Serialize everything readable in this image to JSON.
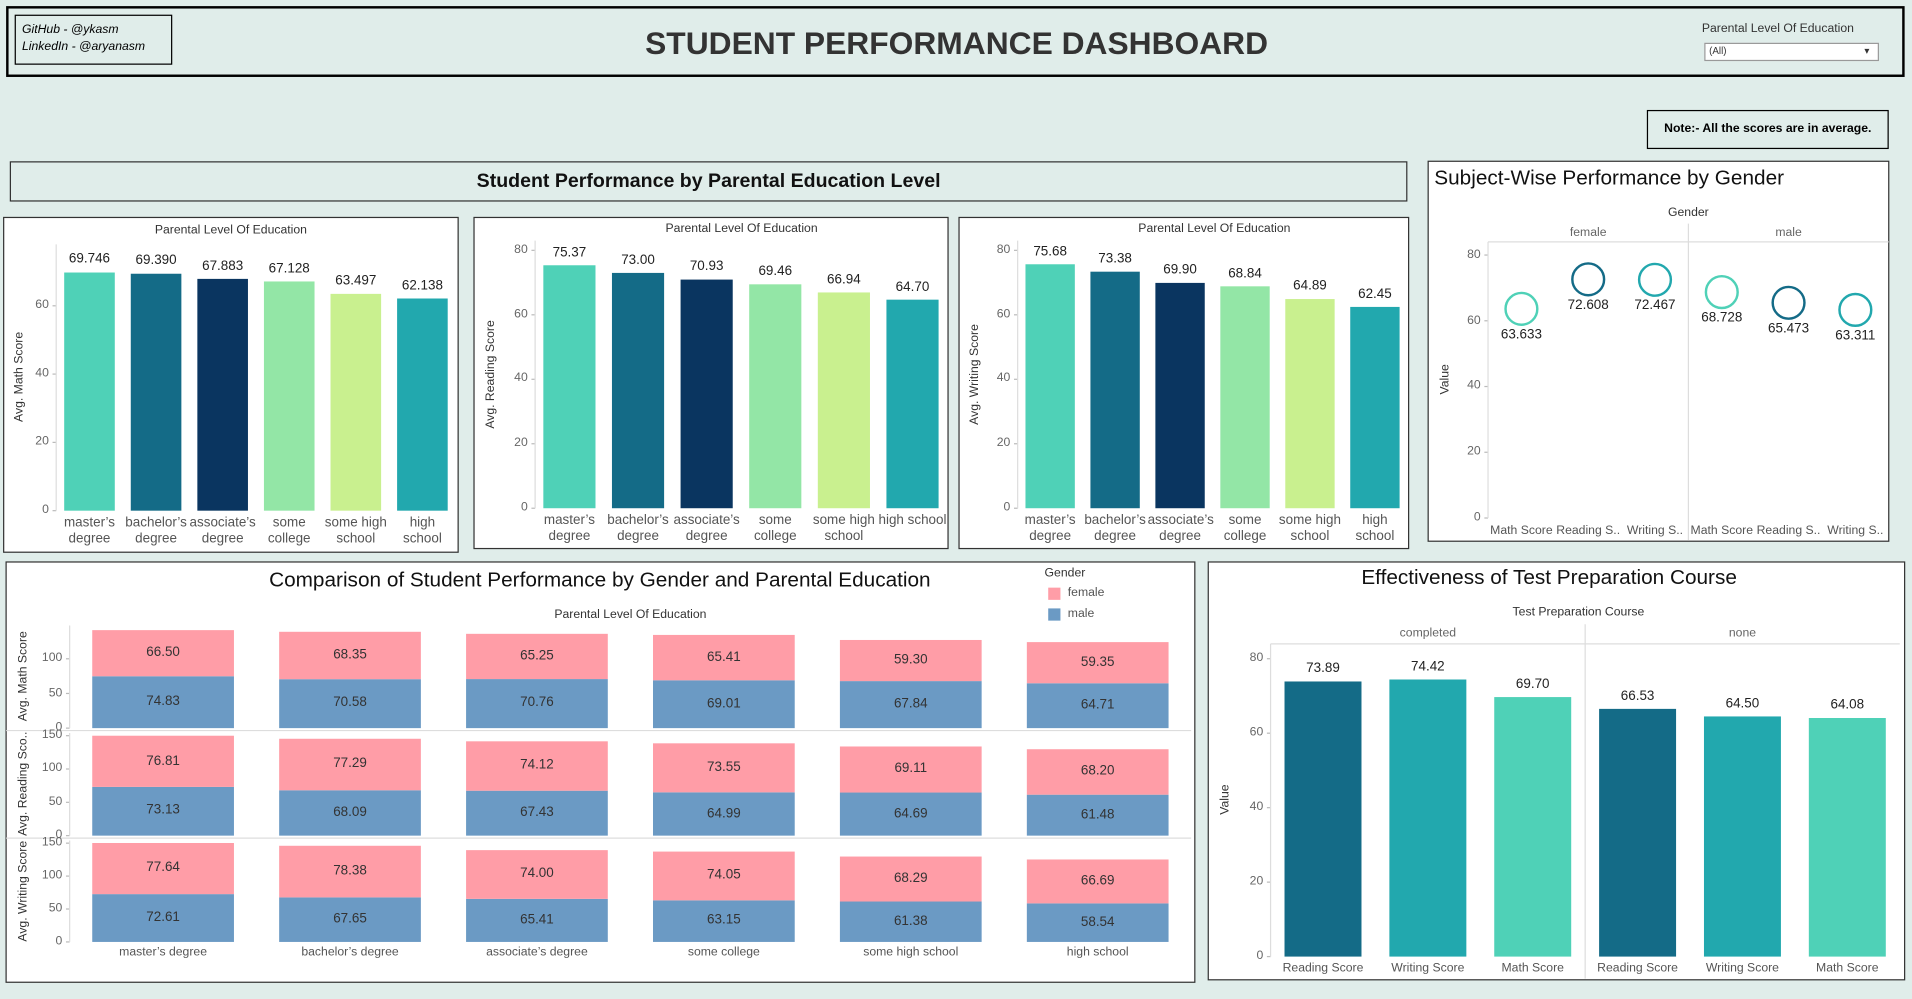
{
  "header": {
    "github": "GitHub - @ykasm",
    "linkedin": "LinkedIn - @aryanasm",
    "title": "STUDENT PERFORMANCE DASHBOARD",
    "filter_label": "Parental Level Of Education",
    "filter_value": "(All)",
    "note": "Note:- All the scores are in average.",
    "section_title": "Student Performance by Parental Education Level"
  },
  "chart_data": [
    {
      "type": "bar",
      "column_header": "Parental Level Of Education",
      "y_label": "Avg. Math Score",
      "categories": [
        "master’s degree",
        "bachelor’s degree",
        "associate’s degree",
        "some college",
        "some high school",
        "high school"
      ],
      "values": [
        69.746,
        69.39,
        67.883,
        67.128,
        63.497,
        62.138
      ],
      "value_labels": [
        "69.746",
        "69.390",
        "67.883",
        "67.128",
        "63.497",
        "62.138"
      ],
      "colors": [
        "#4fd1b7",
        "#146b87",
        "#0a3560",
        "#93e6a6",
        "#c9f08f",
        "#22a8ae"
      ],
      "ylim": [
        0,
        78
      ],
      "yticks": [
        0,
        20,
        40,
        60
      ]
    },
    {
      "type": "bar",
      "column_header": "Parental Level Of Education",
      "y_label": "Avg. Reading Score",
      "categories": [
        "master’s degree",
        "bachelor’s degree",
        "associate’s degree",
        "some college",
        "some high school",
        "high school"
      ],
      "values": [
        75.37,
        73.0,
        70.93,
        69.46,
        66.94,
        64.7
      ],
      "value_labels": [
        "75.37",
        "73.00",
        "70.93",
        "69.46",
        "66.94",
        "64.70"
      ],
      "colors": [
        "#4fd1b7",
        "#146b87",
        "#0a3560",
        "#93e6a6",
        "#c9f08f",
        "#22a8ae"
      ],
      "ylim": [
        0,
        83
      ],
      "yticks": [
        0,
        20,
        40,
        60,
        80
      ]
    },
    {
      "type": "bar",
      "column_header": "Parental Level Of Education",
      "y_label": "Avg. Writing Score",
      "categories": [
        "master’s degree",
        "bachelor’s degree",
        "associate’s degree",
        "some college",
        "some high school",
        "high school"
      ],
      "values": [
        75.68,
        73.38,
        69.9,
        68.84,
        64.89,
        62.45
      ],
      "value_labels": [
        "75.68",
        "73.38",
        "69.90",
        "68.84",
        "64.89",
        "62.45"
      ],
      "colors": [
        "#4fd1b7",
        "#146b87",
        "#0a3560",
        "#93e6a6",
        "#c9f08f",
        "#22a8ae"
      ],
      "ylim": [
        0,
        83
      ],
      "yticks": [
        0,
        20,
        40,
        60,
        80
      ]
    },
    {
      "type": "dot",
      "title": "Subject-Wise Performance by Gender",
      "column_header": "Gender",
      "y_label": "Value",
      "categories": [
        "Math Score",
        "Reading S..",
        "Writing S.."
      ],
      "colors": [
        "#4fd1b7",
        "#146b87",
        "#22a8ae"
      ],
      "series": [
        {
          "name": "female",
          "values": [
            63.633,
            72.608,
            72.467
          ]
        },
        {
          "name": "male",
          "values": [
            68.728,
            65.473,
            63.311
          ]
        }
      ],
      "ylim": [
        0,
        84
      ],
      "yticks": [
        0,
        20,
        40,
        60,
        80
      ]
    },
    {
      "type": "stacked",
      "title": "Comparison of Student Performance by Gender and Parental Education",
      "legend_title": "Gender",
      "column_header": "Parental Level Of Education",
      "categories": [
        "master’s degree",
        "bachelor’s degree",
        "associate’s degree",
        "some college",
        "some high school",
        "high school"
      ],
      "series": [
        {
          "name": "female",
          "color": "#ff9da7"
        },
        {
          "name": "male",
          "color": "#6b9ac4"
        }
      ],
      "panels": [
        {
          "y_label": "Avg. Math Score",
          "ylim": [
            0,
            148
          ],
          "yticks": [
            0,
            50,
            100
          ],
          "values": [
            [
              66.5,
              68.35,
              65.25,
              65.41,
              59.3,
              59.35
            ],
            [
              74.83,
              70.58,
              70.76,
              69.01,
              67.84,
              64.71
            ]
          ],
          "value_labels": [
            [
              "66.50",
              "68.35",
              "65.25",
              "65.41",
              "59.30",
              "59.35"
            ],
            [
              "74.83",
              "70.58",
              "70.76",
              "69.01",
              "67.84",
              "64.71"
            ]
          ]
        },
        {
          "y_label": "Avg. Reading Sco..",
          "ylim": [
            0,
            154
          ],
          "yticks": [
            0,
            50,
            100,
            150
          ],
          "values": [
            [
              76.81,
              77.29,
              74.12,
              73.55,
              69.11,
              68.2
            ],
            [
              73.13,
              68.09,
              67.43,
              64.99,
              64.69,
              61.48
            ]
          ],
          "value_labels": [
            [
              "76.81",
              "77.29",
              "74.12",
              "73.55",
              "69.11",
              "68.20"
            ],
            [
              "73.13",
              "68.09",
              "67.43",
              "64.99",
              "64.69",
              "61.48"
            ]
          ]
        },
        {
          "y_label": "Avg. Writing Score",
          "ylim": [
            0,
            154
          ],
          "yticks": [
            0,
            50,
            100,
            150
          ],
          "values": [
            [
              77.64,
              78.38,
              74.0,
              74.05,
              68.29,
              66.69
            ],
            [
              72.61,
              67.65,
              65.41,
              63.15,
              61.38,
              58.54
            ]
          ],
          "value_labels": [
            [
              "77.64",
              "78.38",
              "74.00",
              "74.05",
              "68.29",
              "66.69"
            ],
            [
              "72.61",
              "67.65",
              "65.41",
              "63.15",
              "61.38",
              "58.54"
            ]
          ]
        }
      ]
    },
    {
      "type": "grouped",
      "title": "Effectiveness of Test Preparation Course",
      "column_header": "Test Preparation Course",
      "y_label": "Value",
      "categories": [
        "Reading Score",
        "Writing Score",
        "Math Score"
      ],
      "colors": [
        "#146b87",
        "#22a8ae",
        "#4fd1b7"
      ],
      "series": [
        {
          "name": "completed",
          "values": [
            73.89,
            74.42,
            69.7
          ],
          "value_labels": [
            "73.89",
            "74.42",
            "69.70"
          ]
        },
        {
          "name": "none",
          "values": [
            66.53,
            64.5,
            64.08
          ],
          "value_labels": [
            "66.53",
            "64.50",
            "64.08"
          ]
        }
      ],
      "ylim": [
        0,
        84
      ],
      "yticks": [
        0,
        20,
        40,
        60,
        80
      ]
    }
  ]
}
